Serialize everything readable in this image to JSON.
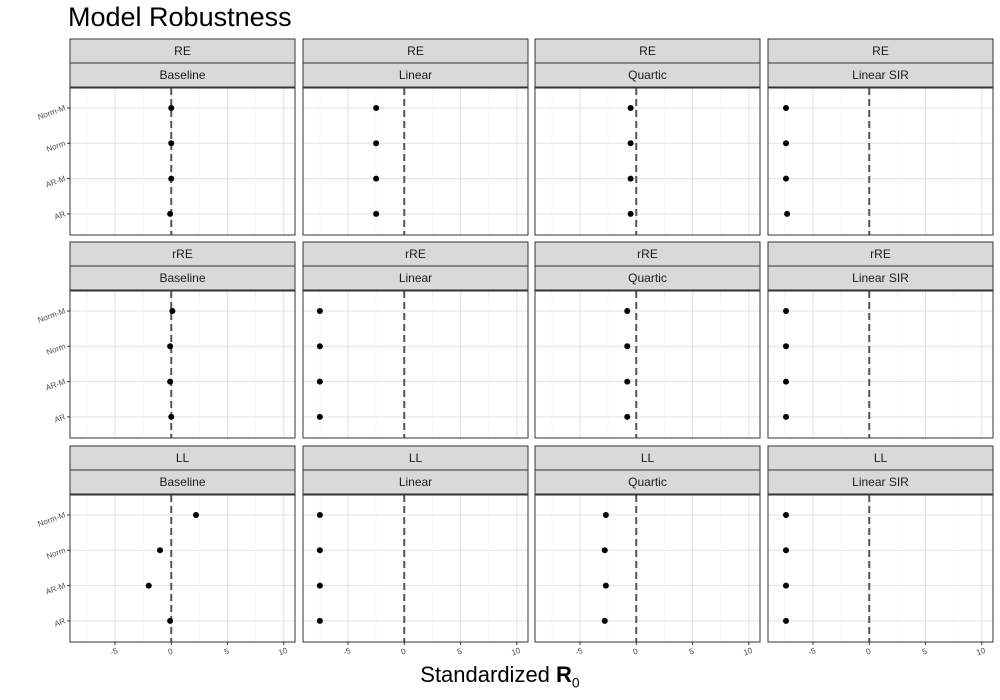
{
  "chart_data": {
    "type": "scatter",
    "title": "Model Robustness",
    "xlabel": "Standardized R0",
    "xlabel_main": "Standardized ",
    "xlabel_symbol": "R",
    "xlabel_subscript": "0",
    "ylabel": "",
    "xlim": [
      -9,
      11
    ],
    "xticks": [
      -5,
      0,
      5,
      10
    ],
    "xtick_labels": [
      "-5",
      "0",
      "5",
      "10"
    ],
    "categories": [
      "Norm-M",
      "Norm",
      "AR-M",
      "AR"
    ],
    "reference_line_x": 0,
    "grid": true,
    "legend": "none",
    "point_color": "#000000",
    "reference_line_color": "#555555",
    "strip_fill": "#d9d9d9",
    "panels": [
      {
        "row": "RE",
        "col": "Baseline",
        "values": [
          0.0,
          0.0,
          0.0,
          -0.1
        ]
      },
      {
        "row": "RE",
        "col": "Linear",
        "values": [
          -2.5,
          -2.5,
          -2.5,
          -2.5
        ]
      },
      {
        "row": "RE",
        "col": "Quartic",
        "values": [
          -0.5,
          -0.5,
          -0.5,
          -0.5
        ]
      },
      {
        "row": "RE",
        "col": "Linear SIR",
        "values": [
          -7.4,
          -7.4,
          -7.4,
          -7.3
        ]
      },
      {
        "row": "rRE",
        "col": "Baseline",
        "values": [
          0.1,
          -0.1,
          -0.1,
          0.0
        ]
      },
      {
        "row": "rRE",
        "col": "Linear",
        "values": [
          -7.5,
          -7.5,
          -7.5,
          -7.5
        ]
      },
      {
        "row": "rRE",
        "col": "Quartic",
        "values": [
          -0.8,
          -0.8,
          -0.8,
          -0.8
        ]
      },
      {
        "row": "rRE",
        "col": "Linear SIR",
        "values": [
          -7.4,
          -7.4,
          -7.4,
          -7.4
        ]
      },
      {
        "row": "LL",
        "col": "Baseline",
        "values": [
          2.2,
          -1.0,
          -2.0,
          -0.1
        ]
      },
      {
        "row": "LL",
        "col": "Linear",
        "values": [
          -7.5,
          -7.5,
          -7.5,
          -7.5
        ]
      },
      {
        "row": "LL",
        "col": "Quartic",
        "values": [
          -2.7,
          -2.8,
          -2.7,
          -2.8
        ]
      },
      {
        "row": "LL",
        "col": "Linear SIR",
        "values": [
          -7.4,
          -7.4,
          -7.4,
          -7.4
        ]
      }
    ]
  }
}
